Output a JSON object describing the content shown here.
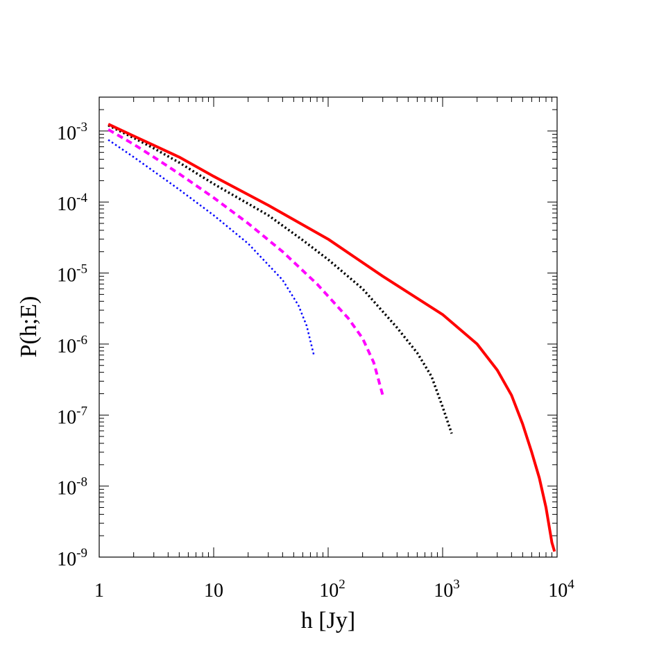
{
  "chart_data": {
    "type": "line",
    "title": "",
    "xlabel": "h [Jy]",
    "ylabel": "P(h;E)",
    "x_scale": "log",
    "y_scale": "log",
    "xlim": [
      1,
      10000
    ],
    "ylim": [
      1e-09,
      0.003
    ],
    "grid": false,
    "legend": "none",
    "x_ticks": [
      {
        "value": 1,
        "base": "1",
        "exp": ""
      },
      {
        "value": 10,
        "base": "10",
        "exp": ""
      },
      {
        "value": 100,
        "base": "10",
        "exp": "2"
      },
      {
        "value": 1000,
        "base": "10",
        "exp": "3"
      },
      {
        "value": 10000,
        "base": "10",
        "exp": "4"
      }
    ],
    "y_ticks": [
      {
        "value": 1e-09,
        "base": "10",
        "exp": "-9"
      },
      {
        "value": 1e-08,
        "base": "10",
        "exp": "-8"
      },
      {
        "value": 1e-07,
        "base": "10",
        "exp": "-7"
      },
      {
        "value": 1e-06,
        "base": "10",
        "exp": "-6"
      },
      {
        "value": 1e-05,
        "base": "10",
        "exp": "-5"
      },
      {
        "value": 0.0001,
        "base": "10",
        "exp": "-4"
      },
      {
        "value": 0.001,
        "base": "10",
        "exp": "-3"
      }
    ],
    "series": [
      {
        "color": "#0000ff",
        "style": "dotted",
        "width": 2.5,
        "points": [
          [
            1.2,
            0.00075
          ],
          [
            2,
            0.00043
          ],
          [
            3,
            0.00027
          ],
          [
            5,
            0.00015
          ],
          [
            10,
            6.5e-05
          ],
          [
            20,
            2.6e-05
          ],
          [
            40,
            8e-06
          ],
          [
            55,
            3.5e-06
          ],
          [
            65,
            1.8e-06
          ],
          [
            75,
            7e-07
          ]
        ]
      },
      {
        "color": "#ff00ff",
        "style": "dashed",
        "width": 4,
        "points": [
          [
            1.2,
            0.00105
          ],
          [
            2,
            0.00065
          ],
          [
            3,
            0.00043
          ],
          [
            5,
            0.00025
          ],
          [
            10,
            0.000115
          ],
          [
            20,
            5e-05
          ],
          [
            40,
            2e-05
          ],
          [
            80,
            7e-06
          ],
          [
            150,
            2.3e-06
          ],
          [
            200,
            1.2e-06
          ],
          [
            250,
            5.5e-07
          ],
          [
            300,
            1.9e-07
          ]
        ]
      },
      {
        "color": "#000000",
        "style": "dotted",
        "width": 3.5,
        "points": [
          [
            1.2,
            0.0012
          ],
          [
            2,
            0.0008
          ],
          [
            3,
            0.00057
          ],
          [
            5,
            0.00036
          ],
          [
            10,
            0.00018
          ],
          [
            30,
            6.5e-05
          ],
          [
            60,
            2.9e-05
          ],
          [
            100,
            1.55e-05
          ],
          [
            200,
            6e-06
          ],
          [
            400,
            1.7e-06
          ],
          [
            600,
            7.5e-07
          ],
          [
            800,
            3.5e-07
          ],
          [
            1000,
            1.3e-07
          ],
          [
            1200,
            5.5e-08
          ]
        ]
      },
      {
        "color": "#ff0000",
        "style": "solid",
        "width": 4,
        "points": [
          [
            1.2,
            0.00125
          ],
          [
            2,
            0.00085
          ],
          [
            3,
            0.00063
          ],
          [
            5,
            0.00043
          ],
          [
            10,
            0.00023
          ],
          [
            30,
            9e-05
          ],
          [
            100,
            3e-05
          ],
          [
            300,
            9e-06
          ],
          [
            1000,
            2.6e-06
          ],
          [
            2000,
            1e-06
          ],
          [
            3000,
            4.3e-07
          ],
          [
            4000,
            1.9e-07
          ],
          [
            5000,
            7.5e-08
          ],
          [
            6000,
            3e-08
          ],
          [
            7000,
            1.3e-08
          ],
          [
            8000,
            5e-09
          ],
          [
            9000,
            1.6e-09
          ],
          [
            9500,
            1.2e-09
          ]
        ]
      }
    ]
  }
}
